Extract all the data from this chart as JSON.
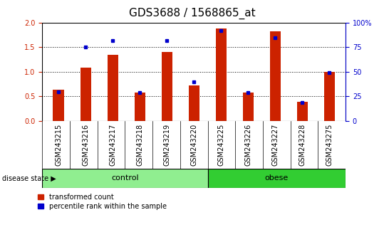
{
  "title": "GDS3688 / 1568865_at",
  "samples": [
    "GSM243215",
    "GSM243216",
    "GSM243217",
    "GSM243218",
    "GSM243219",
    "GSM243220",
    "GSM243225",
    "GSM243226",
    "GSM243227",
    "GSM243228",
    "GSM243275"
  ],
  "transformed_count": [
    0.63,
    1.08,
    1.34,
    0.58,
    1.4,
    0.72,
    1.88,
    0.58,
    1.82,
    0.39,
    1.0
  ],
  "percentile_rank": [
    30,
    75,
    82,
    29,
    82,
    40,
    92,
    29,
    85,
    19,
    49
  ],
  "groups": [
    {
      "label": "control",
      "start": 0,
      "end": 6,
      "color": "#90EE90"
    },
    {
      "label": "obese",
      "start": 6,
      "end": 11,
      "color": "#32CD32"
    }
  ],
  "bar_color": "#CC2200",
  "dot_color": "#0000CC",
  "ylim_left": [
    0,
    2
  ],
  "ylim_right": [
    0,
    100
  ],
  "yticks_left": [
    0,
    0.5,
    1.0,
    1.5,
    2.0
  ],
  "yticks_right": [
    0,
    25,
    50,
    75,
    100
  ],
  "legend_labels": [
    "transformed count",
    "percentile rank within the sample"
  ],
  "plot_bg_color": "#ffffff",
  "gray_box_color": "#cccccc",
  "title_fontsize": 11,
  "tick_fontsize": 7,
  "axis_fontsize": 8,
  "group_fontsize": 8,
  "bar_width": 0.4
}
